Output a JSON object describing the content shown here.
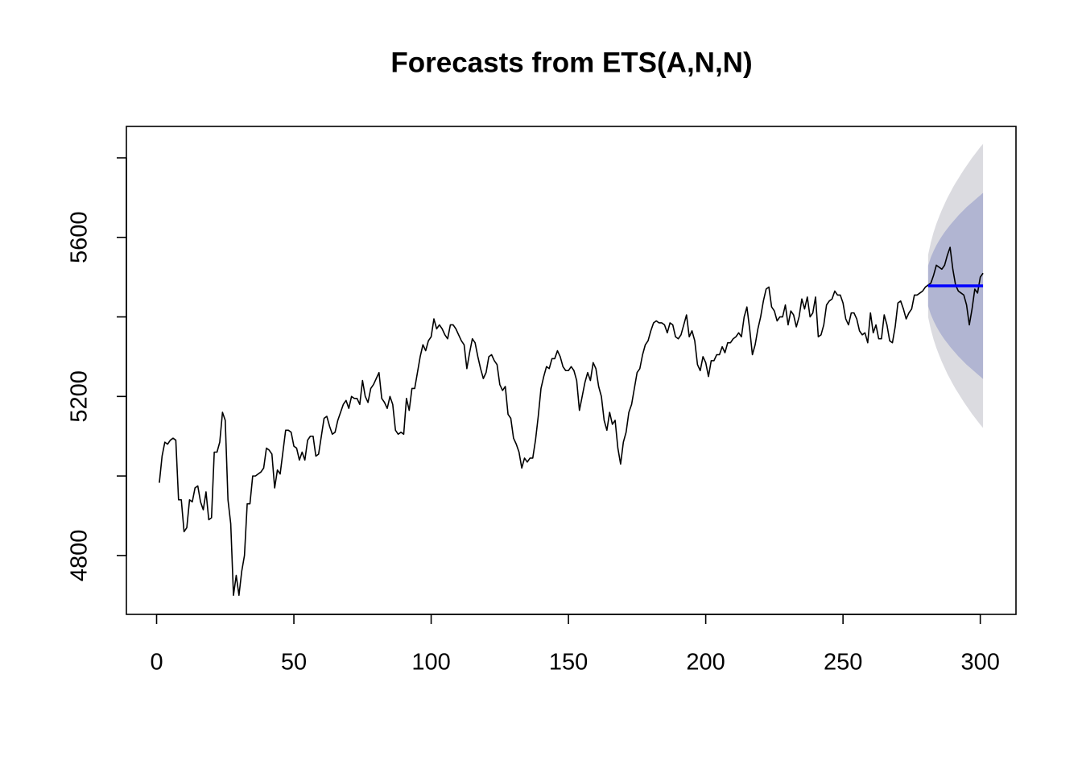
{
  "chart_data": {
    "type": "line",
    "title": "Forecasts from ETS(A,N,N)",
    "xlim": [
      -11,
      313
    ],
    "ylim": [
      4652,
      5879
    ],
    "xticks": [
      0,
      50,
      100,
      150,
      200,
      250,
      300
    ],
    "yticks": [
      4800,
      5200,
      5600
    ],
    "yminor_ticks": [
      5000,
      5400,
      5800
    ],
    "intervals": [
      {
        "color": "#dbdbe0",
        "x": [
          281,
          282,
          283,
          284,
          285,
          286,
          287,
          288,
          289,
          290,
          291,
          292,
          293,
          294,
          295,
          296,
          297,
          298,
          299,
          300,
          301
        ],
        "lower": [
          5400,
          5368,
          5343,
          5322,
          5304,
          5287,
          5272,
          5257,
          5244,
          5231,
          5219,
          5208,
          5197,
          5186,
          5176,
          5166,
          5156,
          5147,
          5138,
          5129,
          5121
        ],
        "upper": [
          5556,
          5588,
          5613,
          5634,
          5652,
          5669,
          5684,
          5699,
          5712,
          5725,
          5737,
          5748,
          5759,
          5770,
          5780,
          5790,
          5800,
          5809,
          5818,
          5827,
          5835
        ]
      },
      {
        "color": "#b1b5d2",
        "x": [
          281,
          282,
          283,
          284,
          285,
          286,
          287,
          288,
          289,
          290,
          291,
          292,
          293,
          294,
          295,
          296,
          297,
          298,
          299,
          300,
          301
        ],
        "lower": [
          5427,
          5406,
          5390,
          5376,
          5364,
          5353,
          5343,
          5334,
          5325,
          5317,
          5309,
          5301,
          5294,
          5287,
          5280,
          5274,
          5268,
          5262,
          5256,
          5250,
          5244
        ],
        "upper": [
          5529,
          5550,
          5566,
          5580,
          5592,
          5603,
          5613,
          5622,
          5631,
          5639,
          5647,
          5655,
          5662,
          5669,
          5676,
          5682,
          5688,
          5694,
          5700,
          5706,
          5712
        ]
      }
    ],
    "series": [
      {
        "color": "#000000",
        "x": [
          1,
          2,
          3,
          4,
          5,
          6,
          7,
          8,
          9,
          10,
          11,
          12,
          13,
          14,
          15,
          16,
          17,
          18,
          19,
          20,
          21,
          22,
          23,
          24,
          25,
          26,
          27,
          28,
          29,
          30,
          31,
          32,
          33,
          34,
          35,
          36,
          37,
          38,
          39,
          40,
          41,
          42,
          43,
          44,
          45,
          46,
          47,
          48,
          49,
          50,
          51,
          52,
          53,
          54,
          55,
          56,
          57,
          58,
          59,
          60,
          61,
          62,
          63,
          64,
          65,
          66,
          67,
          68,
          69,
          70,
          71,
          72,
          73,
          74,
          75,
          76,
          77,
          78,
          79,
          80,
          81,
          82,
          83,
          84,
          85,
          86,
          87,
          88,
          89,
          90,
          91,
          92,
          93,
          94,
          95,
          96,
          97,
          98,
          99,
          100,
          101,
          102,
          103,
          104,
          105,
          106,
          107,
          108,
          109,
          110,
          111,
          112,
          113,
          114,
          115,
          116,
          117,
          118,
          119,
          120,
          121,
          122,
          123,
          124,
          125,
          126,
          127,
          128,
          129,
          130,
          131,
          132,
          133,
          134,
          135,
          136,
          137,
          138,
          139,
          140,
          141,
          142,
          143,
          144,
          145,
          146,
          147,
          148,
          149,
          150,
          151,
          152,
          153,
          154,
          155,
          156,
          157,
          158,
          159,
          160,
          161,
          162,
          163,
          164,
          165,
          166,
          167,
          168,
          169,
          170,
          171,
          172,
          173,
          174,
          175,
          176,
          177,
          178,
          179,
          180,
          181,
          182,
          183,
          184,
          185,
          186,
          187,
          188,
          189,
          190,
          191,
          192,
          193,
          194,
          195,
          196,
          197,
          198,
          199,
          200,
          201,
          202,
          203,
          204,
          205,
          206,
          207,
          208,
          209,
          210,
          211,
          212,
          213,
          214,
          215,
          216,
          217,
          218,
          219,
          220,
          221,
          222,
          223,
          224,
          225,
          226,
          227,
          228,
          229,
          230,
          231,
          232,
          233,
          234,
          235,
          236,
          237,
          238,
          239,
          240,
          241,
          242,
          243,
          244,
          245,
          246,
          247,
          248,
          249,
          250,
          251,
          252,
          253,
          254,
          255,
          256,
          257,
          258,
          259,
          260,
          261,
          262,
          263,
          264,
          265,
          266,
          267,
          268,
          269,
          270,
          271,
          272,
          273,
          274,
          275,
          276,
          277,
          278,
          279,
          280,
          281,
          282,
          283,
          284,
          285,
          286,
          287,
          288,
          289,
          290,
          291,
          292,
          293,
          294,
          295,
          296,
          297,
          298,
          299,
          300,
          301
        ],
        "values": [
          4983,
          5050,
          5085,
          5080,
          5090,
          5095,
          5090,
          4940,
          4940,
          4860,
          4870,
          4940,
          4935,
          4970,
          4975,
          4935,
          4915,
          4960,
          4890,
          4895,
          5060,
          5060,
          5085,
          5160,
          5140,
          4940,
          4880,
          4700,
          4750,
          4700,
          4760,
          4800,
          4930,
          4930,
          5000,
          5000,
          5005,
          5010,
          5020,
          5070,
          5065,
          5055,
          4970,
          5015,
          5005,
          5060,
          5115,
          5115,
          5110,
          5075,
          5070,
          5040,
          5060,
          5040,
          5090,
          5100,
          5100,
          5050,
          5055,
          5100,
          5145,
          5150,
          5125,
          5105,
          5110,
          5140,
          5160,
          5180,
          5190,
          5170,
          5200,
          5195,
          5195,
          5180,
          5240,
          5200,
          5185,
          5220,
          5230,
          5245,
          5260,
          5195,
          5185,
          5170,
          5200,
          5180,
          5115,
          5105,
          5110,
          5105,
          5195,
          5165,
          5220,
          5220,
          5260,
          5300,
          5330,
          5315,
          5340,
          5350,
          5395,
          5370,
          5380,
          5370,
          5355,
          5345,
          5380,
          5380,
          5370,
          5355,
          5340,
          5330,
          5270,
          5310,
          5345,
          5335,
          5300,
          5270,
          5245,
          5260,
          5300,
          5305,
          5290,
          5280,
          5230,
          5215,
          5225,
          5155,
          5145,
          5095,
          5080,
          5060,
          5020,
          5045,
          5035,
          5045,
          5045,
          5090,
          5150,
          5220,
          5250,
          5275,
          5270,
          5295,
          5295,
          5315,
          5300,
          5275,
          5265,
          5265,
          5275,
          5265,
          5240,
          5165,
          5200,
          5235,
          5260,
          5240,
          5285,
          5270,
          5225,
          5200,
          5140,
          5115,
          5160,
          5130,
          5140,
          5070,
          5030,
          5085,
          5110,
          5160,
          5180,
          5220,
          5260,
          5270,
          5305,
          5330,
          5340,
          5365,
          5385,
          5390,
          5385,
          5385,
          5380,
          5360,
          5385,
          5380,
          5350,
          5345,
          5355,
          5380,
          5405,
          5350,
          5365,
          5340,
          5280,
          5265,
          5300,
          5285,
          5250,
          5290,
          5290,
          5305,
          5305,
          5325,
          5310,
          5335,
          5335,
          5345,
          5350,
          5360,
          5350,
          5400,
          5425,
          5370,
          5305,
          5330,
          5370,
          5400,
          5440,
          5470,
          5475,
          5425,
          5415,
          5390,
          5400,
          5400,
          5430,
          5380,
          5415,
          5405,
          5375,
          5400,
          5445,
          5420,
          5450,
          5400,
          5410,
          5450,
          5350,
          5355,
          5380,
          5430,
          5440,
          5445,
          5465,
          5455,
          5455,
          5435,
          5395,
          5380,
          5410,
          5410,
          5395,
          5365,
          5355,
          5360,
          5335,
          5410,
          5360,
          5380,
          5345,
          5345,
          5405,
          5380,
          5340,
          5335,
          5375,
          5435,
          5440,
          5420,
          5395,
          5410,
          5420,
          5455,
          5455,
          5460,
          5465,
          5475,
          5480,
          5485,
          5505,
          5530,
          5525,
          5520,
          5530,
          5555,
          5575,
          5520,
          5480,
          5465,
          5460,
          5455,
          5430,
          5380,
          5420,
          5470,
          5460,
          5500,
          5510
        ]
      },
      {
        "color": "#0000ff",
        "x": [
          281,
          282,
          283,
          284,
          285,
          286,
          287,
          288,
          289,
          290,
          291,
          292,
          293,
          294,
          295,
          296,
          297,
          298,
          299,
          300,
          301
        ],
        "values": [
          5478,
          5478,
          5478,
          5478,
          5478,
          5478,
          5478,
          5478,
          5478,
          5478,
          5478,
          5478,
          5478,
          5478,
          5478,
          5478,
          5478,
          5478,
          5478,
          5478,
          5478
        ]
      }
    ]
  }
}
